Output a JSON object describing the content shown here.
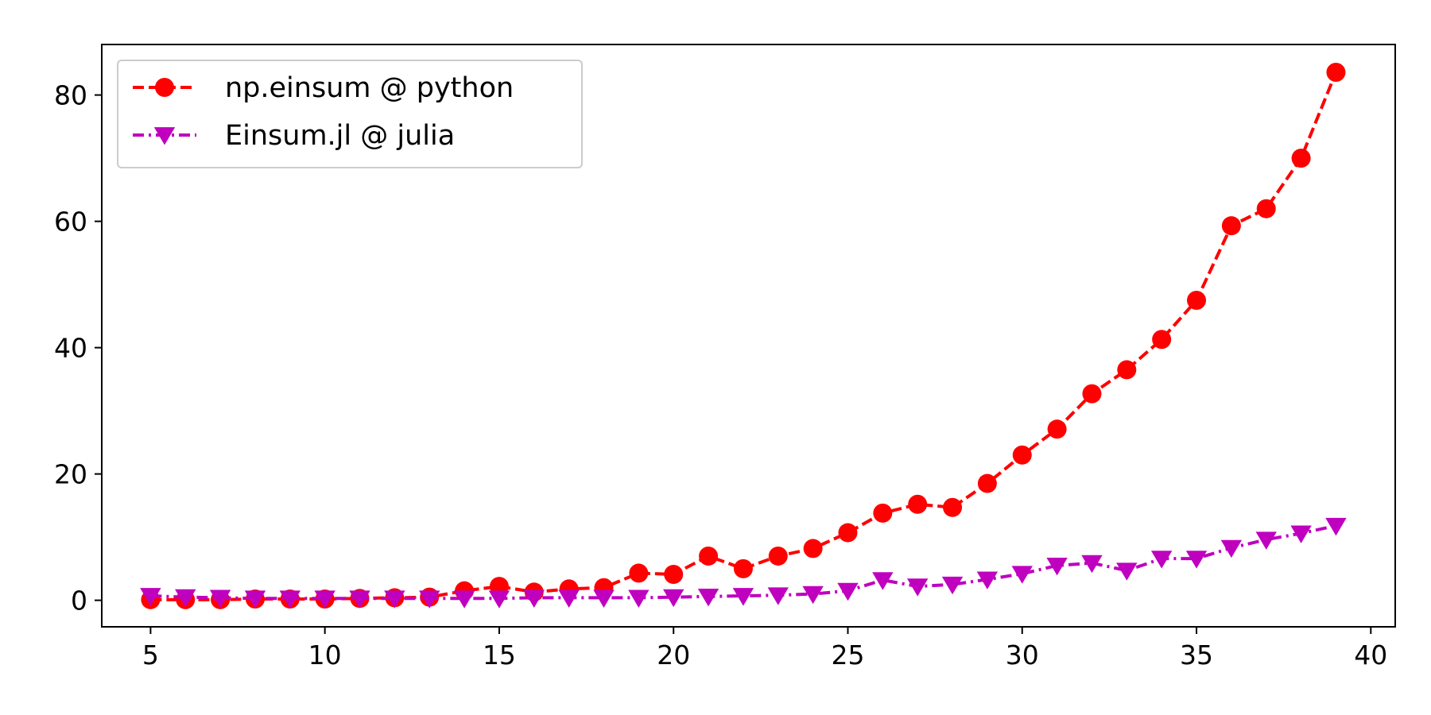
{
  "chart_data": {
    "type": "line",
    "title": "",
    "xlabel": "",
    "ylabel": "",
    "xlim": [
      3.6,
      40.7
    ],
    "ylim": [
      -4.2,
      88
    ],
    "grid": false,
    "legend_position": "top-left",
    "x_ticks": [
      5,
      10,
      15,
      20,
      25,
      30,
      35,
      40
    ],
    "y_ticks": [
      0,
      20,
      40,
      60,
      80
    ],
    "x_tick_labels": [
      "5",
      "10",
      "15",
      "20",
      "25",
      "30",
      "35",
      "40"
    ],
    "y_tick_labels": [
      "0",
      "20",
      "40",
      "60",
      "80"
    ],
    "x": [
      5,
      6,
      7,
      8,
      9,
      10,
      11,
      12,
      13,
      14,
      15,
      16,
      17,
      18,
      19,
      20,
      21,
      22,
      23,
      24,
      25,
      26,
      27,
      28,
      29,
      30,
      31,
      32,
      33,
      34,
      35,
      36,
      37,
      38,
      39
    ],
    "series": [
      {
        "name": "np.einsum @ python",
        "color": "#ff0000",
        "marker": "circle",
        "line_style": "dashed",
        "values": [
          0.1,
          0.1,
          0.1,
          0.2,
          0.2,
          0.2,
          0.3,
          0.4,
          0.5,
          1.5,
          2.2,
          1.3,
          1.8,
          2.0,
          4.3,
          4.1,
          7.0,
          5.0,
          7.0,
          8.2,
          10.7,
          13.8,
          15.2,
          14.7,
          18.5,
          23.0,
          27.1,
          32.7,
          36.5,
          41.3,
          47.5,
          59.3,
          62.0,
          70.0,
          83.6
        ]
      },
      {
        "name": "Einsum.jl @ julia",
        "color": "#bf00bf",
        "marker": "triangle-down",
        "line_style": "dashdot",
        "values": [
          0.7,
          0.5,
          0.4,
          0.3,
          0.3,
          0.3,
          0.3,
          0.3,
          0.3,
          0.3,
          0.3,
          0.4,
          0.4,
          0.4,
          0.4,
          0.5,
          0.6,
          0.7,
          0.8,
          1.0,
          1.5,
          3.2,
          2.2,
          2.5,
          3.3,
          4.2,
          5.5,
          5.9,
          4.7,
          6.6,
          6.6,
          8.3,
          9.6,
          10.6,
          11.8
        ]
      }
    ]
  }
}
